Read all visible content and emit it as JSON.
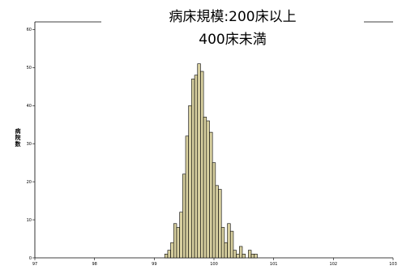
{
  "chart_data": {
    "type": "bar",
    "title_lines": [
      "病床規模:200床以上",
      "400床未満"
    ],
    "ylabel": "病院数",
    "xlabel": "",
    "xlim": [
      97,
      103
    ],
    "ylim": [
      0,
      62
    ],
    "x_ticks": [
      "97",
      "98",
      "99",
      "100",
      "101",
      "102",
      "103"
    ],
    "y_ticks": [
      "0",
      "10",
      "20",
      "30",
      "40",
      "50",
      "60"
    ],
    "bin_width": 0.05,
    "bins": [
      {
        "x": 99.2,
        "value": 1
      },
      {
        "x": 99.25,
        "value": 2
      },
      {
        "x": 99.3,
        "value": 4
      },
      {
        "x": 99.35,
        "value": 9
      },
      {
        "x": 99.4,
        "value": 8
      },
      {
        "x": 99.45,
        "value": 12
      },
      {
        "x": 99.5,
        "value": 22
      },
      {
        "x": 99.55,
        "value": 32
      },
      {
        "x": 99.6,
        "value": 40
      },
      {
        "x": 99.65,
        "value": 47
      },
      {
        "x": 99.7,
        "value": 48
      },
      {
        "x": 99.75,
        "value": 51
      },
      {
        "x": 99.8,
        "value": 49
      },
      {
        "x": 99.85,
        "value": 37
      },
      {
        "x": 99.9,
        "value": 36
      },
      {
        "x": 99.95,
        "value": 33
      },
      {
        "x": 100.0,
        "value": 25
      },
      {
        "x": 100.05,
        "value": 19
      },
      {
        "x": 100.1,
        "value": 18
      },
      {
        "x": 100.15,
        "value": 8
      },
      {
        "x": 100.2,
        "value": 4
      },
      {
        "x": 100.25,
        "value": 9
      },
      {
        "x": 100.3,
        "value": 7
      },
      {
        "x": 100.35,
        "value": 2
      },
      {
        "x": 100.4,
        "value": 1
      },
      {
        "x": 100.45,
        "value": 3
      },
      {
        "x": 100.5,
        "value": 1
      },
      {
        "x": 100.55,
        "value": 0
      },
      {
        "x": 100.6,
        "value": 2
      },
      {
        "x": 100.65,
        "value": 1
      },
      {
        "x": 100.7,
        "value": 1
      }
    ],
    "bar_color": "#d8d0a0",
    "bar_edge_color": "#000000",
    "grid": false,
    "legend": "none"
  }
}
